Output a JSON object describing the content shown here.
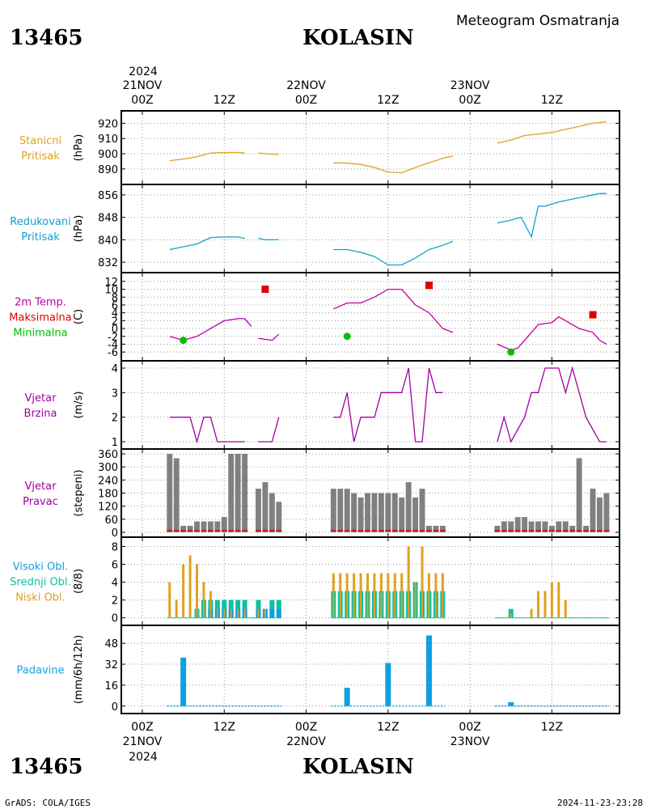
{
  "header": {
    "station_id": "13465",
    "station_name": "KOLASIN",
    "title": "Meteogram Osmatranja",
    "year": "2024"
  },
  "footer": {
    "credit": "GrADS: COLA/IGES",
    "timestamp": "2024-11-23-23:28"
  },
  "time_axis": {
    "tick_labels": [
      "00Z",
      "12Z",
      "00Z",
      "12Z",
      "00Z",
      "12Z"
    ],
    "tick_hours": [
      0,
      12,
      24,
      36,
      48,
      60
    ],
    "date_labels": [
      "21NOV",
      "22NOV",
      "23NOV"
    ],
    "date_hours": [
      0,
      24,
      48
    ]
  },
  "panels": {
    "station_pressure": {
      "labels": [
        "Stanicni",
        "Pritisak"
      ],
      "unit": "(hPa)",
      "color": "#e0a020"
    },
    "reduced_pressure": {
      "labels": [
        "Redukovani",
        "Pritisak"
      ],
      "unit": "(hPa)",
      "color": "#10a0d0"
    },
    "temperature": {
      "labels": [
        "2m Temp.",
        "Maksimalna",
        "Minimalna"
      ],
      "unit": "(C)",
      "colors": [
        "#c000a0",
        "#e00000",
        "#00c000"
      ]
    },
    "wind_speed": {
      "labels": [
        "Vjetar",
        "Brzina"
      ],
      "unit": "(m/s)",
      "color": "#a000a0"
    },
    "wind_direction": {
      "labels": [
        "Vjetar",
        "Pravac"
      ],
      "unit": "(stepeni)",
      "color": "#a000a0"
    },
    "clouds": {
      "labels": [
        "Visoki Obl.",
        "Srednji Obl.",
        "Niski Obl."
      ],
      "unit": "(8/8)",
      "colors": [
        "#10a0e0",
        "#10c0a0",
        "#e0a020"
      ]
    },
    "precipitation": {
      "labels": [
        "Padavine"
      ],
      "unit": "(mm/6h/12h)",
      "color": "#10a0e0"
    }
  },
  "chart_data": [
    {
      "type": "line",
      "id": "station_pressure",
      "ylabel": "(hPa)",
      "ylim": [
        883,
        925
      ],
      "yticks": [
        890,
        900,
        910,
        920
      ],
      "series": [
        {
          "segments": [
            [
              [
                4,
                895.5
              ],
              [
                6,
                896.5
              ],
              [
                8,
                898
              ],
              [
                10,
                900.5
              ],
              [
                12,
                900.8
              ],
              [
                14,
                900.8
              ],
              [
                15,
                900.5
              ]
            ],
            [
              [
                17,
                900.5
              ],
              [
                18,
                900
              ],
              [
                20,
                899.5
              ]
            ],
            [
              [
                28,
                894
              ],
              [
                30,
                893.8
              ],
              [
                32,
                893
              ],
              [
                34,
                891
              ],
              [
                36,
                888
              ],
              [
                38,
                887.5
              ],
              [
                40,
                891
              ],
              [
                42,
                894
              ],
              [
                44,
                897
              ],
              [
                45.5,
                898.5
              ]
            ],
            [
              [
                52,
                907
              ],
              [
                54,
                909
              ],
              [
                56,
                912
              ],
              [
                58,
                913
              ],
              [
                60,
                914
              ],
              [
                62,
                916
              ],
              [
                64,
                918
              ],
              [
                66,
                920
              ],
              [
                68,
                921
              ]
            ]
          ]
        }
      ]
    },
    {
      "type": "line",
      "id": "reduced_pressure",
      "ylabel": "(hPa)",
      "ylim": [
        830,
        858
      ],
      "yticks": [
        832,
        840,
        848,
        856
      ],
      "series": [
        {
          "segments": [
            [
              [
                4,
                836.5
              ],
              [
                6,
                837.5
              ],
              [
                8,
                838.5
              ],
              [
                10,
                840.8
              ],
              [
                12,
                841
              ],
              [
                14,
                841
              ],
              [
                15,
                840.5
              ]
            ],
            [
              [
                17,
                840.5
              ],
              [
                18,
                840
              ],
              [
                20,
                840
              ]
            ],
            [
              [
                28,
                836.5
              ],
              [
                30,
                836.5
              ],
              [
                32,
                835.5
              ],
              [
                34,
                834
              ],
              [
                36,
                831
              ],
              [
                38,
                831
              ],
              [
                40,
                833.5
              ],
              [
                42,
                836.5
              ],
              [
                44,
                838
              ],
              [
                45.5,
                839.5
              ]
            ],
            [
              [
                52,
                846
              ],
              [
                54,
                847
              ],
              [
                55.5,
                848
              ],
              [
                57,
                841
              ],
              [
                58,
                852
              ],
              [
                59,
                852
              ],
              [
                61,
                853.5
              ],
              [
                63,
                854.5
              ],
              [
                65,
                855.5
              ],
              [
                67,
                856.5
              ],
              [
                68,
                856.5
              ]
            ]
          ]
        }
      ]
    },
    {
      "type": "line",
      "id": "temperature",
      "ylabel": "(C)",
      "ylim": [
        -7,
        13
      ],
      "yticks": [
        -6,
        -4,
        -2,
        0,
        2,
        4,
        6,
        8,
        10,
        12
      ],
      "series": [
        {
          "segments": [
            [
              [
                4,
                -2
              ],
              [
                6,
                -3
              ],
              [
                8,
                -2
              ],
              [
                10,
                0
              ],
              [
                12,
                2
              ],
              [
                14,
                2.5
              ],
              [
                15,
                2.5
              ],
              [
                16,
                0.5
              ]
            ],
            [
              [
                17,
                -2.5
              ],
              [
                19,
                -3
              ],
              [
                20,
                -1.5
              ]
            ],
            [
              [
                28,
                5
              ],
              [
                30,
                6.5
              ],
              [
                32,
                6.5
              ],
              [
                34,
                8
              ],
              [
                36,
                10
              ],
              [
                38,
                10
              ],
              [
                40,
                6
              ],
              [
                42,
                4
              ],
              [
                44,
                0
              ],
              [
                45.5,
                -1
              ]
            ],
            [
              [
                52,
                -4
              ],
              [
                54,
                -5.5
              ],
              [
                55,
                -5
              ],
              [
                57,
                -1
              ],
              [
                58,
                1
              ],
              [
                60,
                1.5
              ],
              [
                61,
                3
              ],
              [
                62,
                2
              ],
              [
                64,
                0
              ],
              [
                66,
                -1
              ],
              [
                67,
                -3
              ],
              [
                68,
                -4
              ]
            ]
          ]
        },
        {
          "name": "Maksimalna",
          "points": [
            [
              18,
              10
            ],
            [
              42,
              11
            ],
            [
              66,
              3.5
            ]
          ]
        },
        {
          "name": "Minimalna",
          "points": [
            [
              6,
              -3
            ],
            [
              30,
              -2
            ],
            [
              54,
              -6
            ]
          ]
        }
      ]
    },
    {
      "type": "line",
      "id": "wind_speed",
      "ylabel": "(m/s)",
      "ylim": [
        0.9,
        4.1
      ],
      "yticks": [
        1,
        2,
        3,
        4
      ],
      "series": [
        {
          "segments": [
            [
              [
                4,
                2
              ],
              [
                6,
                2
              ],
              [
                7,
                2
              ],
              [
                8,
                1
              ],
              [
                9,
                2
              ],
              [
                10,
                2
              ],
              [
                11,
                1
              ],
              [
                13,
                1
              ],
              [
                15,
                1
              ]
            ],
            [
              [
                17,
                1
              ],
              [
                19,
                1
              ],
              [
                20,
                2
              ]
            ],
            [
              [
                28,
                2
              ],
              [
                29,
                2
              ],
              [
                30,
                3
              ],
              [
                31,
                1
              ],
              [
                32,
                2
              ],
              [
                34,
                2
              ],
              [
                35,
                3
              ],
              [
                38,
                3
              ],
              [
                39,
                4
              ],
              [
                40,
                1
              ],
              [
                41,
                1
              ],
              [
                42,
                4
              ],
              [
                43,
                3
              ],
              [
                44,
                3
              ]
            ],
            [
              [
                52,
                1
              ],
              [
                53,
                2
              ],
              [
                54,
                1
              ],
              [
                56,
                2
              ],
              [
                57,
                3
              ],
              [
                58,
                3
              ],
              [
                59,
                4
              ],
              [
                61,
                4
              ],
              [
                62,
                3
              ],
              [
                63,
                4
              ],
              [
                65,
                2
              ],
              [
                67,
                1
              ],
              [
                68,
                1
              ]
            ]
          ]
        }
      ]
    },
    {
      "type": "bar",
      "id": "wind_direction",
      "ylabel": "(stepeni)",
      "ylim": [
        0,
        360
      ],
      "yticks": [
        0,
        60,
        120,
        180,
        240,
        300,
        360
      ],
      "x": [
        4,
        5,
        6,
        7,
        8,
        9,
        10,
        11,
        12,
        13,
        14,
        15,
        17,
        18,
        19,
        20,
        28,
        29,
        30,
        31,
        32,
        33,
        34,
        35,
        36,
        37,
        38,
        39,
        40,
        41,
        42,
        43,
        44,
        52,
        53,
        54,
        55,
        56,
        57,
        58,
        59,
        60,
        61,
        62,
        63,
        64,
        65,
        66,
        67,
        68
      ],
      "values": [
        360,
        340,
        30,
        30,
        50,
        50,
        50,
        50,
        70,
        360,
        360,
        360,
        200,
        230,
        180,
        140,
        200,
        200,
        200,
        180,
        160,
        180,
        180,
        180,
        180,
        180,
        160,
        230,
        160,
        200,
        30,
        30,
        30,
        30,
        50,
        50,
        70,
        70,
        50,
        50,
        50,
        30,
        50,
        50,
        30,
        340,
        30,
        200,
        160,
        180
      ]
    },
    {
      "type": "bar",
      "id": "clouds",
      "ylabel": "(8/8)",
      "ylim": [
        -0.3,
        8.5
      ],
      "yticks": [
        0,
        2,
        4,
        6,
        8
      ],
      "series": [
        {
          "name": "Niski Obl.",
          "x": [
            4,
            5,
            6,
            7,
            8,
            9,
            10,
            11,
            12,
            13,
            14,
            15,
            17,
            18,
            28,
            29,
            30,
            31,
            32,
            33,
            34,
            35,
            36,
            37,
            38,
            39,
            40,
            41,
            42,
            43,
            44,
            54,
            57,
            58,
            59,
            60,
            61,
            62,
            63
          ],
          "values": [
            4,
            2,
            6,
            7,
            6,
            4,
            3,
            1,
            1,
            1,
            1,
            1,
            1,
            1,
            5,
            5,
            5,
            5,
            5,
            5,
            5,
            5,
            5,
            5,
            5,
            8,
            4,
            8,
            5,
            5,
            5,
            0.5,
            1,
            3,
            3,
            4,
            4,
            2,
            0
          ]
        },
        {
          "name": "Srednji Obl.",
          "x": [
            8,
            9,
            10,
            11,
            12,
            13,
            14,
            15,
            17,
            18,
            19,
            20,
            28,
            29,
            30,
            31,
            32,
            33,
            34,
            35,
            36,
            37,
            38,
            39,
            40,
            41,
            42,
            43,
            44,
            54
          ],
          "values": [
            1,
            2,
            2,
            2,
            2,
            2,
            2,
            2,
            2,
            1,
            2,
            2,
            3,
            3,
            3,
            3,
            3,
            3,
            3,
            3,
            3,
            3,
            3,
            3,
            4,
            3,
            3,
            3,
            3,
            1
          ]
        },
        {
          "name": "Visoki Obl.",
          "x": [
            10,
            11,
            12,
            13,
            14,
            15,
            17,
            18,
            19,
            20
          ],
          "values": [
            1,
            1,
            1,
            1,
            1,
            1,
            1,
            1,
            1,
            1
          ]
        }
      ]
    },
    {
      "type": "bar",
      "id": "precipitation",
      "ylabel": "(mm/6h/12h)",
      "ylim": [
        -2,
        58
      ],
      "yticks": [
        0,
        16,
        32,
        48
      ],
      "x": [
        6,
        30,
        36,
        42,
        54
      ],
      "values": [
        37,
        14,
        33,
        54,
        3
      ]
    }
  ]
}
